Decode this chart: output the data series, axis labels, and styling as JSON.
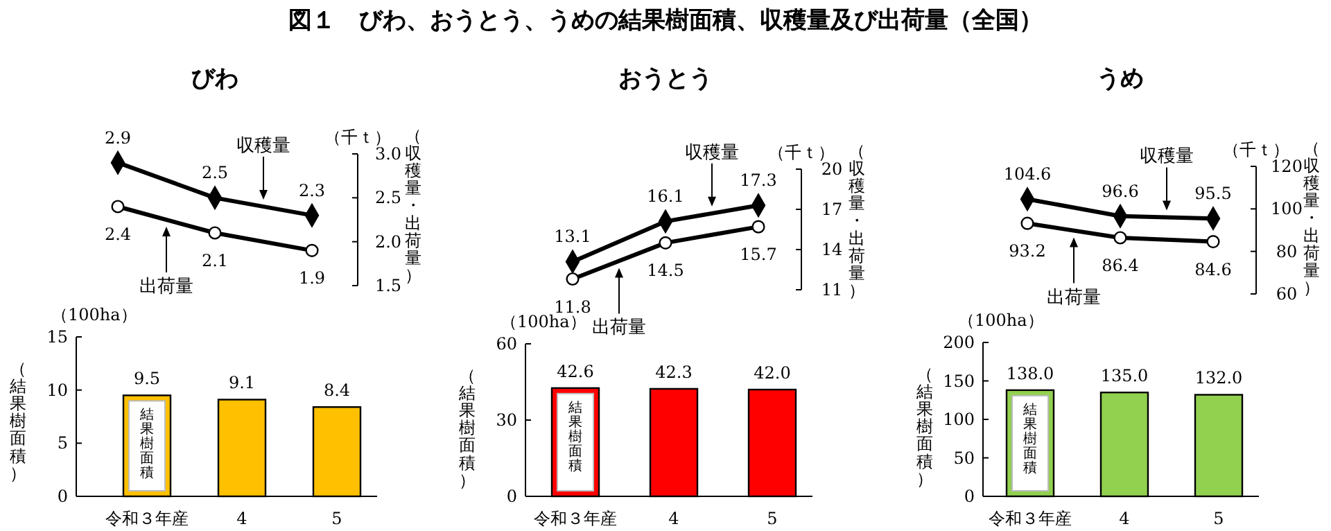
{
  "chart_data": [
    {
      "type": "other",
      "title": "図１　びわ、おうとう、うめの結果樹面積、収穫量及び出荷量（全国）"
    },
    {
      "type": "line",
      "title": "びわ",
      "categories": [
        null,
        null,
        null
      ],
      "ylabel": "（収穫量・出荷量）",
      "annotations": [
        "（千ｔ）"
      ],
      "ylim": [
        1.5,
        3.0
      ],
      "yticks": [
        {
          "value": 1.5,
          "label": "1.5"
        },
        {
          "value": 2.0,
          "label": "2.0"
        },
        {
          "value": 2.5,
          "label": "2.5"
        },
        {
          "value": 3.0,
          "label": "3.0"
        }
      ],
      "line_style": "solid",
      "series": [
        {
          "name": "収穫量",
          "color": "#000000",
          "marker": "diamond",
          "values": [
            2.9,
            2.5,
            2.3
          ],
          "value_labels": [
            "2.9",
            "2.5",
            "2.3"
          ]
        },
        {
          "name": "出荷量",
          "color": "#000000",
          "marker": "circle",
          "values": [
            2.4,
            2.1,
            1.9
          ],
          "value_labels": [
            "2.4",
            "2.1",
            "1.9"
          ]
        }
      ]
    },
    {
      "type": "line",
      "title": "おうとう",
      "categories": [
        null,
        null,
        null
      ],
      "ylabel": "（収穫量・出荷量）",
      "annotations": [
        "（千ｔ）"
      ],
      "ylim": [
        11,
        20
      ],
      "yticks": [
        11,
        14,
        17,
        20
      ],
      "line_style": "solid",
      "series": [
        {
          "name": "収穫量",
          "color": "#000000",
          "marker": "diamond",
          "values": [
            13.1,
            16.1,
            17.3
          ],
          "value_labels": [
            "13.1",
            "16.1",
            "17.3"
          ]
        },
        {
          "name": "出荷量",
          "color": "#000000",
          "marker": "circle",
          "values": [
            11.8,
            14.5,
            15.7
          ],
          "value_labels": [
            "11.8",
            "14.5",
            "15.7"
          ]
        }
      ]
    },
    {
      "type": "line",
      "title": "うめ",
      "categories": [
        null,
        null,
        null
      ],
      "ylabel": "（収穫量・出荷量）",
      "annotations": [
        "（千ｔ）"
      ],
      "ylim": [
        60,
        120
      ],
      "yticks": [
        60,
        80,
        100,
        120
      ],
      "line_style": "solid",
      "series": [
        {
          "name": "収穫量",
          "color": "#000000",
          "marker": "diamond",
          "values": [
            104.6,
            96.6,
            95.5
          ],
          "value_labels": [
            "104.6",
            "96.6",
            "95.5"
          ]
        },
        {
          "name": "出荷量",
          "color": "#000000",
          "marker": "circle",
          "values": [
            93.2,
            86.4,
            84.6
          ],
          "value_labels": [
            "93.2",
            "86.4",
            "84.6"
          ]
        }
      ]
    },
    {
      "type": "bar",
      "categories": [
        "令和３年産",
        "4",
        "5"
      ],
      "ylabel": "（結果樹面積）",
      "annotations": [
        "（100ha）",
        "結果樹面積"
      ],
      "ylim": [
        0,
        15
      ],
      "yticks": [
        0,
        5,
        10,
        15
      ],
      "values": [
        9.5,
        9.1,
        8.4
      ],
      "value_labels": [
        "9.5",
        "9.1",
        "8.4"
      ],
      "color": "#ffc000"
    },
    {
      "type": "bar",
      "categories": [
        "令和３年産",
        "4",
        "5"
      ],
      "ylabel": "（結果樹面積）",
      "annotations": [
        "（100ha）",
        "結果樹面積"
      ],
      "ylim": [
        0,
        60
      ],
      "yticks": [
        0,
        30,
        60
      ],
      "values": [
        42.6,
        42.3,
        42.0
      ],
      "value_labels": [
        "42.6",
        "42.3",
        "42.0"
      ],
      "color": "#ff0000"
    },
    {
      "type": "bar",
      "categories": [
        "令和３年産",
        "4",
        "5"
      ],
      "ylabel": "（結果樹面積）",
      "annotations": [
        "（100ha）",
        "結果樹面積"
      ],
      "ylim": [
        0,
        200
      ],
      "yticks": [
        0,
        50,
        100,
        150,
        200
      ],
      "values": [
        138.0,
        135.0,
        132.0
      ],
      "value_labels": [
        "138.0",
        "135.0",
        "132.0"
      ],
      "color": "#92d050"
    }
  ]
}
